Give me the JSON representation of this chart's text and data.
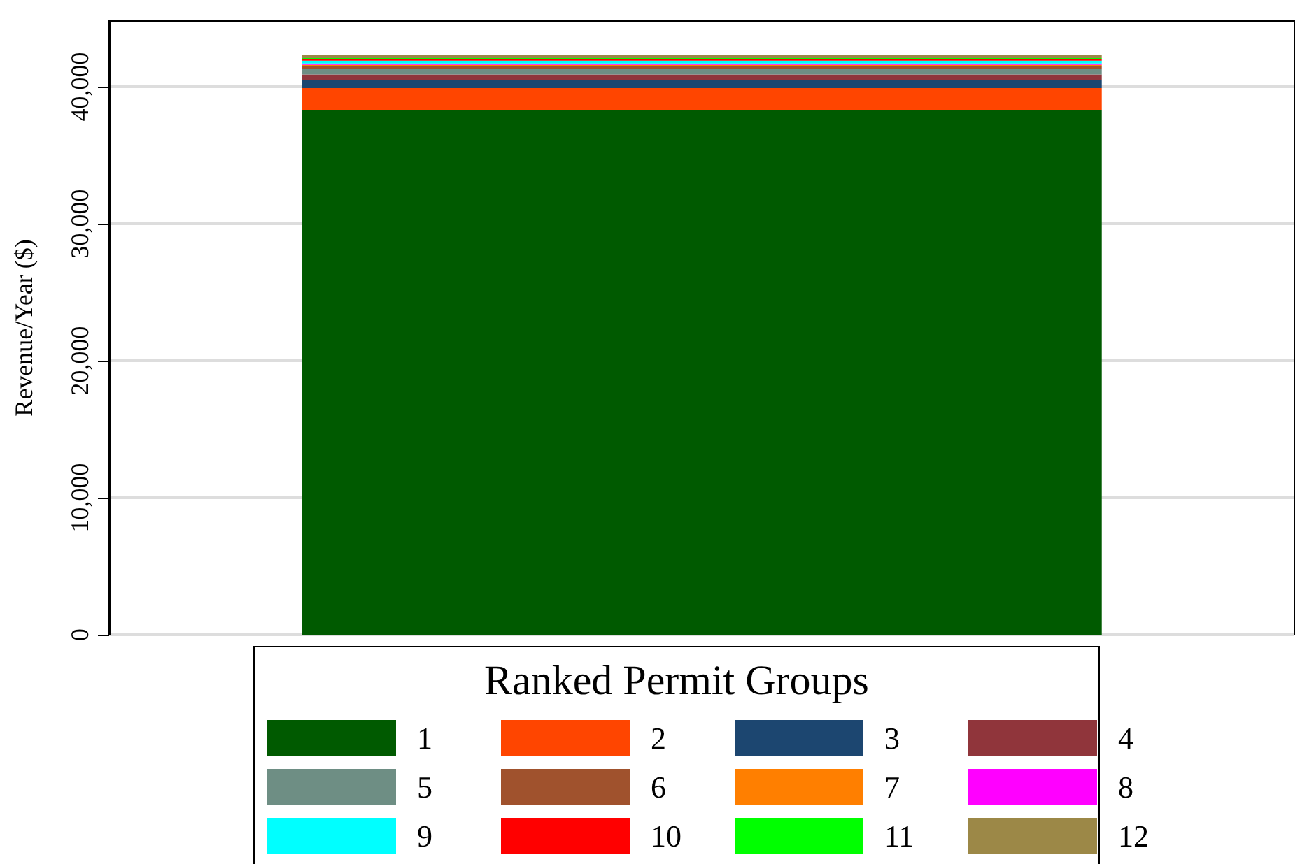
{
  "chart_data": {
    "type": "bar",
    "stacked": true,
    "ylabel": "Revenue/Year ($)",
    "legend_title": "Ranked Permit Groups",
    "categories": [
      null
    ],
    "series": [
      {
        "name": "1",
        "color": "#005a00",
        "values": [
          38300
        ]
      },
      {
        "name": "2",
        "color": "#ff4500",
        "values": [
          1600
        ]
      },
      {
        "name": "3",
        "color": "#1c4670",
        "values": [
          600
        ]
      },
      {
        "name": "4",
        "color": "#90353b",
        "values": [
          400
        ]
      },
      {
        "name": "5",
        "color": "#6e8e84",
        "values": [
          400
        ]
      },
      {
        "name": "6",
        "color": "#a0522d",
        "values": [
          200
        ]
      },
      {
        "name": "7",
        "color": "#ff7f00",
        "values": [
          100
        ]
      },
      {
        "name": "8",
        "color": "#ff00ff",
        "values": [
          100
        ]
      },
      {
        "name": "9",
        "color": "#00ffff",
        "values": [
          200
        ]
      },
      {
        "name": "10",
        "color": "#ff0000",
        "values": [
          100
        ]
      },
      {
        "name": "11",
        "color": "#00ff00",
        "values": [
          100
        ]
      },
      {
        "name": "12",
        "color": "#9c8847",
        "values": [
          200
        ]
      }
    ],
    "ylim": [
      0,
      44800
    ],
    "yticks": [
      0,
      {
        "value": 10000,
        "label": "10,000"
      },
      {
        "value": 20000,
        "label": "20,000"
      },
      {
        "value": 30000,
        "label": "30,000"
      },
      {
        "value": 40000,
        "label": "40,000"
      }
    ],
    "grid": "y",
    "legend": "bottom"
  }
}
